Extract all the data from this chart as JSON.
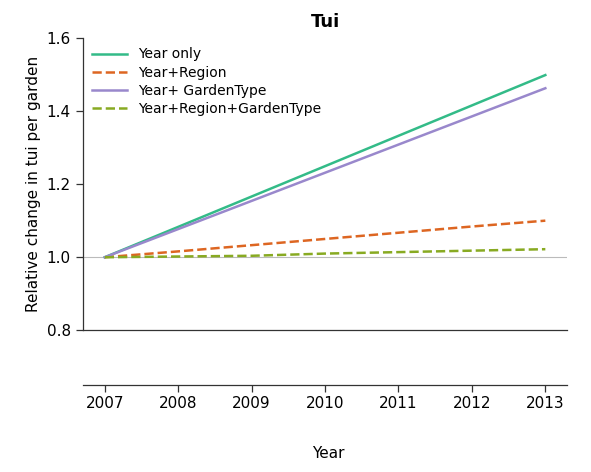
{
  "title": "Tui",
  "xlabel": "Year",
  "ylabel": "Relative change in tui per garden",
  "xlim": [
    2006.7,
    2013.3
  ],
  "ylim": [
    0.8,
    1.6
  ],
  "xticks": [
    2007,
    2008,
    2009,
    2010,
    2011,
    2012,
    2013
  ],
  "yticks": [
    0.8,
    1.0,
    1.2,
    1.4,
    1.6
  ],
  "lines": [
    {
      "label": "Year only",
      "color": "#33bb88",
      "linestyle": "solid",
      "linewidth": 1.8,
      "x": [
        2007,
        2008,
        2009,
        2010,
        2011,
        2012,
        2013
      ],
      "y": [
        1.0,
        1.083,
        1.166,
        1.249,
        1.332,
        1.415,
        1.498
      ]
    },
    {
      "label": "Year+Region",
      "color": "#dd6622",
      "linestyle": "dashed",
      "linewidth": 1.8,
      "x": [
        2007,
        2008,
        2009,
        2010,
        2011,
        2012,
        2013
      ],
      "y": [
        1.0,
        1.016,
        1.033,
        1.05,
        1.067,
        1.084,
        1.1
      ]
    },
    {
      "label": "Year+ GardenType",
      "color": "#9988cc",
      "linestyle": "solid",
      "linewidth": 1.8,
      "x": [
        2007,
        2008,
        2009,
        2010,
        2011,
        2012,
        2013
      ],
      "y": [
        1.0,
        1.077,
        1.154,
        1.231,
        1.308,
        1.385,
        1.462
      ]
    },
    {
      "label": "Year+Region+GardenType",
      "color": "#88aa22",
      "linestyle": "dashed",
      "linewidth": 1.8,
      "x": [
        2007,
        2008,
        2009,
        2010,
        2011,
        2012,
        2013
      ],
      "y": [
        1.0,
        1.002,
        1.004,
        1.01,
        1.014,
        1.018,
        1.022
      ]
    }
  ],
  "hline_y": 1.0,
  "hline_color": "#bbbbbb",
  "hline_linewidth": 0.8,
  "background_color": "#ffffff",
  "title_fontsize": 13,
  "label_fontsize": 11,
  "tick_fontsize": 11,
  "legend_fontsize": 10
}
